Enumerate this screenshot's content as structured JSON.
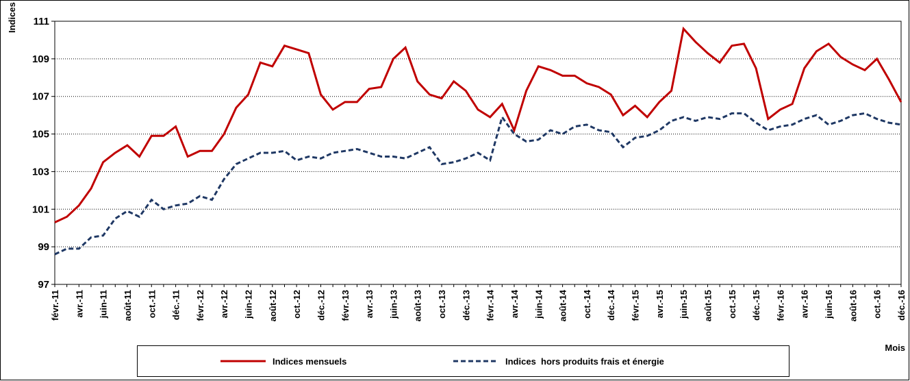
{
  "chart_data": {
    "type": "line",
    "y_label": "Indices",
    "x_label": "Mois",
    "categories": [
      "févr.-11",
      null,
      "avr.-11",
      null,
      "juin-11",
      null,
      "août-11",
      null,
      "oct.-11",
      null,
      "déc.-11",
      null,
      "févr.-12",
      null,
      "avr.-12",
      null,
      "juin-12",
      null,
      "août-12",
      null,
      "oct.-12",
      null,
      "déc.-12",
      null,
      "févr.-13",
      null,
      "avr.-13",
      null,
      "juin-13",
      null,
      "août-13",
      null,
      "oct.-13",
      null,
      "déc.-13",
      null,
      "févr.-14",
      null,
      "avr.-14",
      null,
      "juin-14",
      null,
      "août-14",
      null,
      "oct.-14",
      null,
      "déc.-14",
      null,
      "févr.-15",
      null,
      "avr.-15",
      null,
      "juin-15",
      null,
      "août-15",
      null,
      "oct.-15",
      null,
      "déc.-15",
      null,
      "févr.-16",
      null,
      "avr.-16",
      null,
      "juin-16",
      null,
      "août-16",
      null,
      "oct.-16",
      null,
      "déc.-16"
    ],
    "series": [
      {
        "name": "Indices mensuels",
        "color": "#c00000",
        "dash": false,
        "values": [
          100.3,
          100.6,
          101.2,
          102.1,
          103.5,
          104.0,
          104.4,
          103.8,
          104.9,
          104.9,
          105.4,
          103.8,
          104.1,
          104.1,
          105.0,
          106.4,
          107.1,
          108.8,
          108.6,
          109.7,
          109.5,
          109.3,
          107.1,
          106.3,
          106.7,
          106.7,
          107.4,
          107.5,
          109.0,
          109.6,
          107.8,
          107.1,
          106.9,
          107.8,
          107.3,
          106.3,
          105.9,
          106.6,
          105.2,
          107.3,
          108.6,
          108.4,
          108.1,
          108.1,
          107.7,
          107.5,
          107.1,
          106.0,
          106.5,
          105.9,
          106.7,
          107.3,
          110.6,
          109.9,
          109.3,
          108.8,
          109.7,
          109.8,
          108.5,
          105.8,
          106.3,
          106.6,
          108.5,
          109.4,
          109.8,
          109.1,
          108.7,
          108.4,
          109.0,
          107.9,
          106.7
        ]
      },
      {
        "name": "Indices  hors produits frais et énergie",
        "color": "#1f3864",
        "dash": true,
        "values": [
          98.6,
          98.9,
          98.9,
          99.5,
          99.6,
          100.5,
          100.9,
          100.6,
          101.5,
          101.0,
          101.2,
          101.3,
          101.7,
          101.5,
          102.6,
          103.4,
          103.7,
          104.0,
          104.0,
          104.1,
          103.6,
          103.8,
          103.7,
          104.0,
          104.1,
          104.2,
          104.0,
          103.8,
          103.8,
          103.7,
          104.0,
          104.3,
          103.4,
          103.5,
          103.7,
          104.0,
          103.6,
          105.9,
          105.0,
          104.6,
          104.7,
          105.2,
          105.0,
          105.4,
          105.5,
          105.2,
          105.1,
          104.3,
          104.8,
          104.9,
          105.2,
          105.7,
          105.9,
          105.7,
          105.9,
          105.8,
          106.1,
          106.1,
          105.6,
          105.2,
          105.4,
          105.5,
          105.8,
          106.0,
          105.5,
          105.7,
          106.0,
          106.1,
          105.8,
          105.6,
          105.5
        ]
      }
    ],
    "ylim": [
      97,
      111
    ],
    "yticks": [
      97,
      99,
      101,
      103,
      105,
      107,
      109,
      111
    ],
    "grid": true
  }
}
